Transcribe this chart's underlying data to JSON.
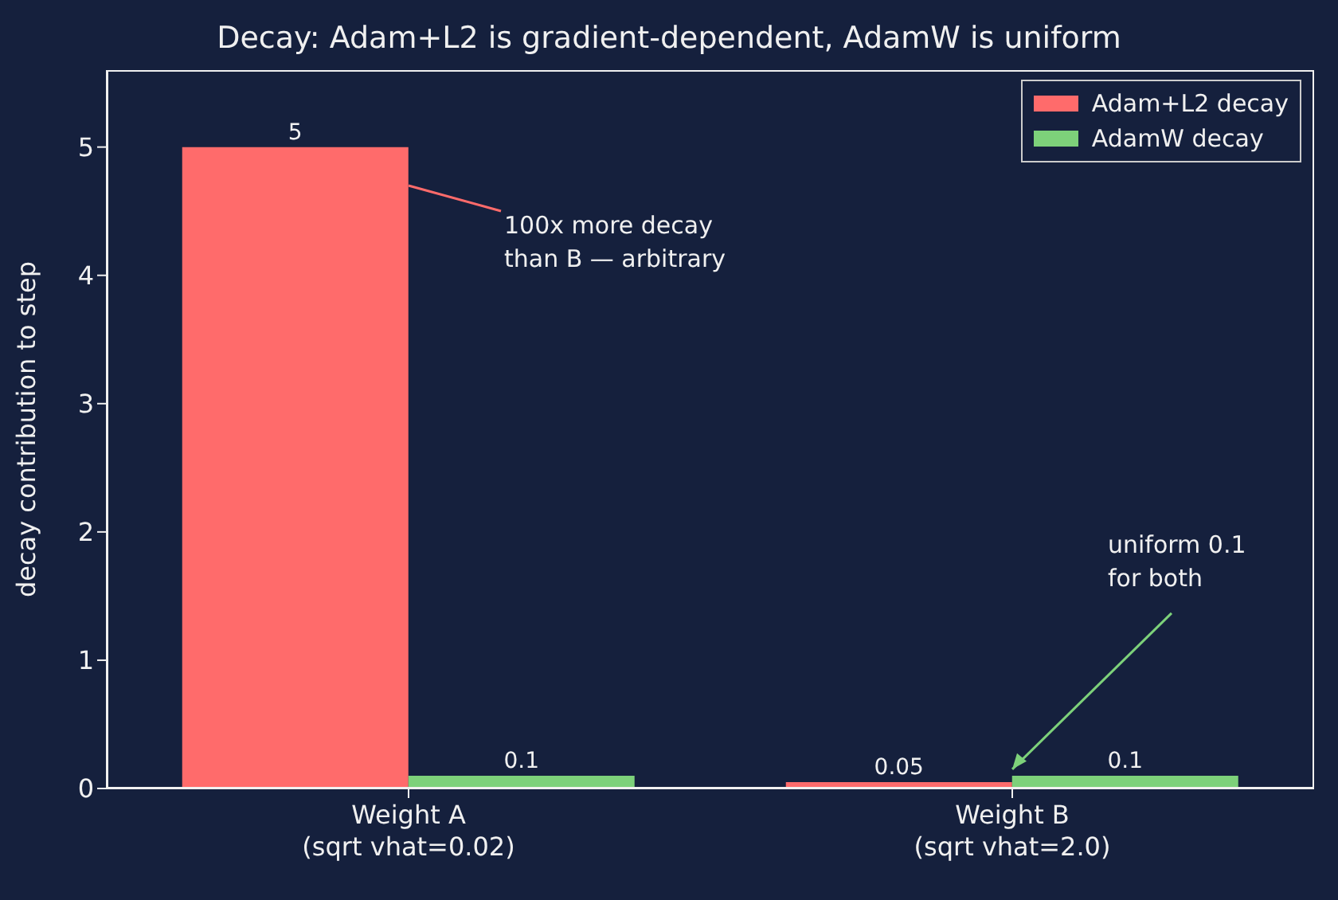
{
  "chart_data": {
    "type": "bar",
    "title": "Decay: Adam+L2 is gradient-dependent, AdamW is uniform",
    "ylabel": "decay contribution to step",
    "categories": [
      "Weight A\n(sqrt vhat=0.02)",
      "Weight B\n(sqrt vhat=2.0)"
    ],
    "series": [
      {
        "name": "Adam+L2 decay",
        "color": "#ff6b6b",
        "values": [
          5,
          0.05
        ]
      },
      {
        "name": "AdamW decay",
        "color": "#7dd17a",
        "values": [
          0.1,
          0.1
        ]
      }
    ],
    "ylim": [
      0,
      5.6
    ],
    "yticks": [
      0,
      1,
      2,
      3,
      4,
      5
    ],
    "grid": false,
    "legend": "top right",
    "data_labels": true,
    "annotations": [
      {
        "text": "100x more decay\nthan B — arbitrary",
        "x": "Weight A\n(sqrt vhat=0.02)",
        "y": 4.7
      },
      {
        "text": "uniform 0.1\nfor both",
        "x": "Weight B\n(sqrt vhat=2.0)",
        "y": 0.15
      }
    ]
  }
}
